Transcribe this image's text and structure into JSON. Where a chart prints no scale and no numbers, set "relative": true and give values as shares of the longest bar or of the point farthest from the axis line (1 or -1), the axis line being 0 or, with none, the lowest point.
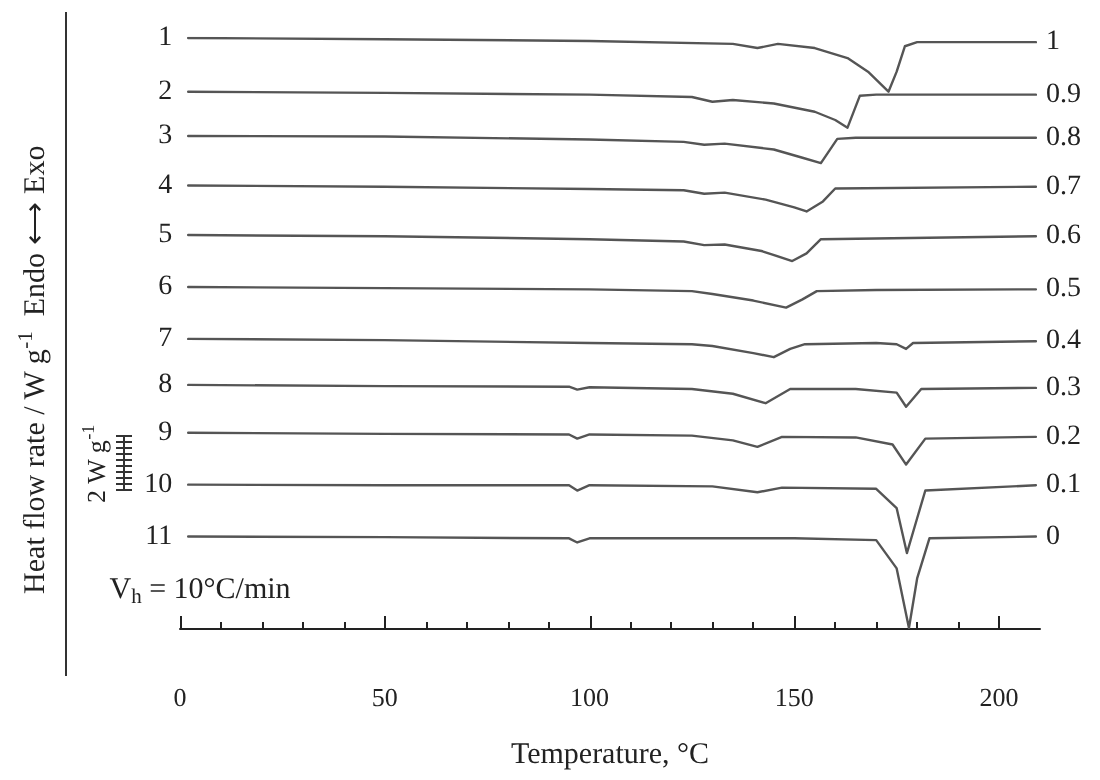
{
  "chart_data": {
    "type": "line",
    "relative": true,
    "xlabel": "Temperature, °C",
    "ylabel": "Heat flow rate / W g$^{-1}$  Endo ⟷ Exo",
    "xlim": [
      0,
      210
    ],
    "xticks": [
      0,
      50,
      100,
      150,
      200
    ],
    "grid": false,
    "legend": false,
    "marker": "none",
    "line_style": "solid",
    "series": [
      {
        "name": "1",
        "color": "#555555",
        "x": [
          2,
          50,
          100,
          135,
          141,
          146,
          155,
          163,
          168,
          173,
          175,
          177,
          180,
          209
        ],
        "values": [
          1.0,
          0.998,
          0.995,
          0.99,
          0.983,
          0.99,
          0.983,
          0.966,
          0.943,
          0.909,
          0.943,
          0.986,
          0.993,
          0.993
        ]
      },
      {
        "name": "2",
        "color": "#555555",
        "x": [
          2,
          50,
          100,
          125,
          130,
          135,
          145,
          155,
          160,
          163,
          166,
          170,
          209
        ],
        "values": [
          0.909,
          0.907,
          0.904,
          0.9,
          0.892,
          0.895,
          0.889,
          0.875,
          0.861,
          0.848,
          0.902,
          0.904,
          0.904
        ]
      },
      {
        "name": "3",
        "color": "#555555",
        "x": [
          2,
          50,
          100,
          123,
          128,
          133,
          145,
          152,
          156.5,
          160.5,
          165,
          209
        ],
        "values": [
          0.834,
          0.833,
          0.828,
          0.824,
          0.819,
          0.821,
          0.811,
          0.797,
          0.788,
          0.829,
          0.831,
          0.831
        ]
      },
      {
        "name": "4",
        "color": "#555555",
        "x": [
          2,
          50,
          100,
          123,
          128,
          133,
          143,
          150,
          153,
          157,
          160,
          209
        ],
        "values": [
          0.75,
          0.748,
          0.744,
          0.742,
          0.736,
          0.738,
          0.726,
          0.713,
          0.706,
          0.723,
          0.745,
          0.748
        ]
      },
      {
        "name": "5",
        "color": "#555555",
        "x": [
          2,
          50,
          100,
          123,
          128,
          133,
          142,
          149.5,
          153,
          156.5,
          209
        ],
        "values": [
          0.666,
          0.664,
          0.659,
          0.655,
          0.649,
          0.65,
          0.639,
          0.622,
          0.635,
          0.659,
          0.664
        ]
      },
      {
        "name": "6",
        "color": "#555555",
        "x": [
          2,
          50,
          100,
          125,
          130,
          140,
          148,
          152,
          155.5,
          170,
          209
        ],
        "values": [
          0.578,
          0.576,
          0.574,
          0.571,
          0.566,
          0.555,
          0.543,
          0.557,
          0.571,
          0.573,
          0.574
        ]
      },
      {
        "name": "7",
        "color": "#555555",
        "x": [
          2,
          50,
          100,
          125,
          130,
          140,
          145,
          149,
          152.6,
          170,
          175,
          177.3,
          179,
          209
        ],
        "values": [
          0.49,
          0.488,
          0.483,
          0.481,
          0.478,
          0.466,
          0.459,
          0.473,
          0.481,
          0.483,
          0.481,
          0.473,
          0.483,
          0.486
        ]
      },
      {
        "name": "8",
        "color": "#555555",
        "x": [
          2,
          50,
          95,
          97,
          100,
          125,
          135,
          143,
          149,
          165,
          175,
          177.3,
          181,
          209
        ],
        "values": [
          0.412,
          0.41,
          0.409,
          0.404,
          0.408,
          0.405,
          0.397,
          0.381,
          0.405,
          0.405,
          0.399,
          0.375,
          0.405,
          0.407
        ]
      },
      {
        "name": "9",
        "color": "#555555",
        "x": [
          2,
          50,
          95,
          97,
          100,
          125,
          135,
          141,
          147,
          165,
          174,
          177.3,
          182,
          209
        ],
        "values": [
          0.331,
          0.329,
          0.328,
          0.321,
          0.328,
          0.326,
          0.318,
          0.307,
          0.324,
          0.323,
          0.311,
          0.277,
          0.321,
          0.324
        ]
      },
      {
        "name": "10",
        "color": "#555555",
        "x": [
          2,
          50,
          95,
          97,
          100,
          130,
          141,
          147,
          170,
          175,
          177.5,
          180,
          182,
          209
        ],
        "values": [
          0.243,
          0.242,
          0.242,
          0.233,
          0.242,
          0.24,
          0.23,
          0.238,
          0.236,
          0.203,
          0.127,
          0.186,
          0.233,
          0.242
        ]
      },
      {
        "name": "11",
        "color": "#555555",
        "x": [
          2,
          50,
          95,
          97,
          100,
          150,
          170,
          175,
          178,
          180,
          183,
          209
        ],
        "values": [
          0.155,
          0.154,
          0.152,
          0.145,
          0.152,
          0.152,
          0.149,
          0.101,
          0,
          0.084,
          0.152,
          0.155
        ]
      }
    ],
    "annotations": [
      "1",
      "0.9",
      "0.8",
      "0.7",
      "0.6",
      "0.5",
      "0.4",
      "0.3",
      "0.2",
      "0.1",
      "0",
      "V$_{h}$ = 10°C/min",
      "2 W g$^{-1}$"
    ]
  }
}
